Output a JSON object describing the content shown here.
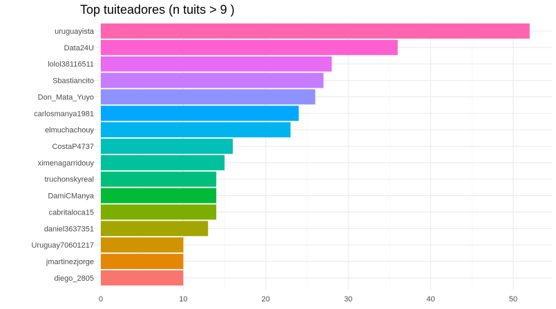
{
  "chart_data": {
    "type": "bar",
    "orientation": "horizontal",
    "title": "Top tuiteadores (n tuits > 9 )",
    "xlabel": "",
    "ylabel": "",
    "xlim": [
      0,
      54.6
    ],
    "x_ticks": [
      0,
      10,
      20,
      30,
      40,
      50
    ],
    "grid": true,
    "legend": "none",
    "categories": [
      "uruguayista",
      "Data24U",
      "lolol38116511",
      "Sbastiancito",
      "Don_Mata_Yuyo",
      "carlosmanya1981",
      "elmuchachouy",
      "CostaP4737",
      "ximenagarridouy",
      "truchonskyreal",
      "DamiCManya",
      "cabritaloca15",
      "daniel3637351",
      "Uruguay70601217",
      "jmartinezjorge",
      "diego_2805"
    ],
    "values": [
      52,
      36,
      28,
      27,
      26,
      24,
      23,
      16,
      15,
      14,
      14,
      14,
      13,
      10,
      10,
      10
    ],
    "colors": [
      "#FF65AE",
      "#FD61D1",
      "#E76BF3",
      "#C77CFF",
      "#8F91FF",
      "#00A9FF",
      "#00B4EF",
      "#00C0B8",
      "#00C19C",
      "#00BF7D",
      "#00BA38",
      "#7CAE00",
      "#A3A500",
      "#CF9400",
      "#E58700",
      "#F8766D"
    ]
  }
}
